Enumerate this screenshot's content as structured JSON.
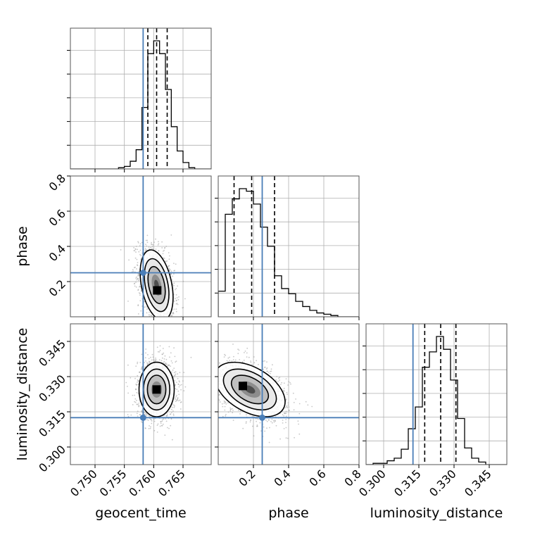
{
  "chart_data": {
    "type": "corner",
    "parameters": [
      "geocent_time",
      "phase",
      "luminosity_distance"
    ],
    "truths": {
      "geocent_time": 0.7582,
      "phase": 0.25,
      "luminosity_distance": 0.3125
    },
    "colors": {
      "truth": "#4a7eb8",
      "contour": "#000000",
      "dashed": "#000000",
      "grid": "#b0b0b0",
      "axes": "#555555"
    },
    "grid": true,
    "axes": {
      "geocent_time": {
        "range": [
          0.7458,
          0.7698
        ],
        "ticks": [
          0.75,
          0.755,
          0.76,
          0.765
        ],
        "tick_labels": [
          "0.750",
          "0.755",
          "0.760",
          "0.765"
        ]
      },
      "phase": {
        "range": [
          0.0,
          0.8
        ],
        "ticks": [
          0.2,
          0.4,
          0.6,
          0.8
        ],
        "tick_labels": [
          "0.2",
          "0.4",
          "0.6",
          "0.8"
        ]
      },
      "luminosity_distance": {
        "range": [
          0.2925,
          0.3525
        ],
        "ticks": [
          0.3,
          0.315,
          0.33,
          0.345
        ],
        "tick_labels": [
          "0.300",
          "0.315",
          "0.330",
          "0.345"
        ]
      }
    },
    "marginals": [
      {
        "parameter": "geocent_time",
        "bins_edges": [
          0.745,
          0.746,
          0.747,
          0.748,
          0.749,
          0.75,
          0.751,
          0.752,
          0.753,
          0.754,
          0.755,
          0.756,
          0.757,
          0.758,
          0.759,
          0.76,
          0.761,
          0.762,
          0.763,
          0.764,
          0.765,
          0.766,
          0.767,
          0.768,
          0.769,
          0.77
        ],
        "counts": [
          0,
          0,
          0,
          0,
          0,
          0,
          0,
          0,
          0,
          1,
          2,
          6,
          15,
          48,
          90,
          100,
          90,
          62,
          33,
          14,
          5,
          1,
          0,
          0,
          0
        ],
        "quantiles": [
          0.759,
          0.7605,
          0.7623
        ]
      },
      {
        "parameter": "phase",
        "bins_edges": [
          0.0,
          0.04,
          0.08,
          0.12,
          0.16,
          0.2,
          0.24,
          0.28,
          0.32,
          0.36,
          0.4,
          0.44,
          0.48,
          0.52,
          0.56,
          0.6,
          0.64,
          0.68,
          0.72,
          0.76,
          0.8
        ],
        "counts": [
          20,
          80,
          92,
          100,
          98,
          88,
          70,
          55,
          32,
          22,
          18,
          12,
          8,
          5,
          3,
          2,
          1,
          0,
          0,
          0
        ],
        "quantiles": [
          0.09,
          0.19,
          0.32
        ]
      },
      {
        "parameter": "luminosity_distance",
        "bins_edges": [
          0.2925,
          0.2955,
          0.2985,
          0.3015,
          0.3045,
          0.3075,
          0.3105,
          0.3135,
          0.3165,
          0.3195,
          0.3225,
          0.3255,
          0.3285,
          0.3315,
          0.3345,
          0.3375,
          0.3405,
          0.3435,
          0.3465,
          0.3495,
          0.3525
        ],
        "counts": [
          0,
          1,
          1,
          3,
          5,
          12,
          28,
          45,
          76,
          88,
          100,
          90,
          66,
          36,
          13,
          5,
          2,
          0,
          0,
          0
        ],
        "quantiles": [
          0.3175,
          0.3243,
          0.3308
        ]
      }
    ],
    "joints": [
      {
        "x": "geocent_time",
        "y": "phase",
        "mean": [
          0.7605,
          0.18
        ],
        "sd": [
          0.0014,
          0.1
        ],
        "rho": -0.35,
        "peak": [
          0.7606,
          0.15
        ]
      },
      {
        "x": "geocent_time",
        "y": "luminosity_distance",
        "mean": [
          0.7605,
          0.3245
        ],
        "sd": [
          0.0015,
          0.0058
        ],
        "rho": 0.0,
        "peak": [
          0.7605,
          0.3245
        ]
      },
      {
        "x": "phase",
        "y": "luminosity_distance",
        "mean": [
          0.18,
          0.3245
        ],
        "sd": [
          0.1,
          0.0058
        ],
        "rho": -0.45,
        "peak": [
          0.14,
          0.326
        ]
      }
    ]
  }
}
